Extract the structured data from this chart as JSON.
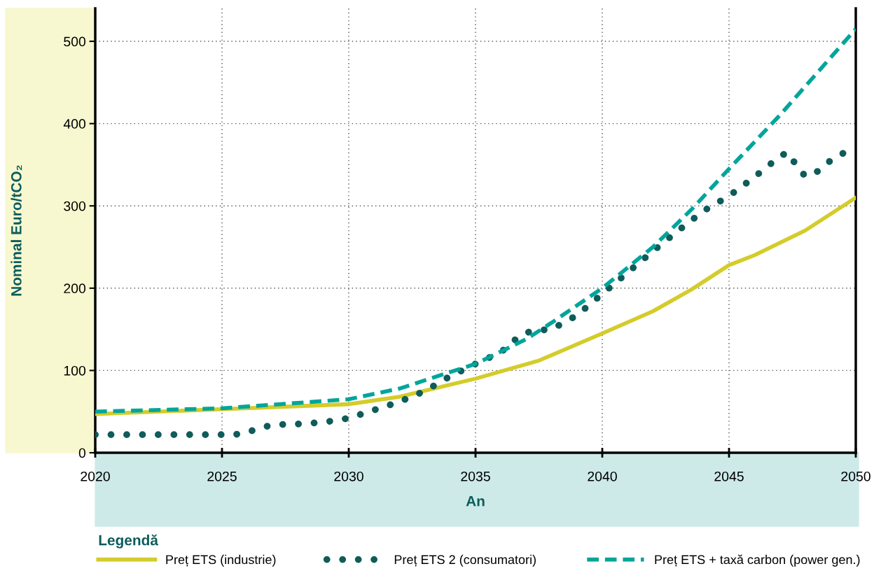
{
  "chart_data": {
    "type": "line",
    "xlabel": "An",
    "ylabel": "Nominal Euro/tCO₂",
    "legend_title": "Legendă",
    "legend": "bottom",
    "grid": true,
    "xlim": [
      2020,
      2050
    ],
    "xticks": [
      2020,
      2025,
      2030,
      2035,
      2040,
      2045,
      2050
    ],
    "ylim": [
      0,
      540
    ],
    "yticks": [
      0,
      100,
      200,
      300,
      400,
      500
    ],
    "series": [
      {
        "name": "Preț ETS (industrie)",
        "color": "#d4cc2a",
        "line_style": "solid",
        "x": [
          2020,
          2025,
          2030,
          2032,
          2035,
          2037.5,
          2040,
          2042,
          2043.5,
          2044.5,
          2045,
          2046,
          2048,
          2050
        ],
        "values": [
          47,
          53,
          59,
          68,
          90,
          112,
          145,
          172,
          198,
          218,
          228,
          240,
          270,
          310
        ]
      },
      {
        "name": "Preț ETS 2 (consumatori)",
        "color": "#0f5c5a",
        "line_style": "dotted",
        "x": [
          2020,
          2025,
          2025.5,
          2026,
          2026.5,
          2027,
          2028,
          2029,
          2030,
          2031,
          2032,
          2033,
          2034,
          2035,
          2035.5,
          2036,
          2036.5,
          2037,
          2037.5,
          2038,
          2039,
          2040,
          2041,
          2042,
          2043,
          2044,
          2045,
          2046,
          2047,
          2047.3,
          2047.6,
          2048,
          2048.5,
          2049,
          2050
        ],
        "values": [
          22,
          22,
          22,
          25,
          30,
          34,
          35,
          37,
          42,
          52,
          62,
          75,
          93,
          108,
          115,
          122,
          136,
          146,
          149,
          150,
          167,
          193,
          219,
          245,
          270,
          294,
          312,
          335,
          360,
          365,
          352,
          336,
          342,
          355,
          373
        ]
      },
      {
        "name": "Preț ETS + taxă carbon (power gen.)",
        "color": "#00a59b",
        "line_style": "dashed",
        "x": [
          2020,
          2025,
          2030,
          2032,
          2035,
          2037,
          2038,
          2040,
          2042,
          2043.5,
          2045,
          2047,
          2050
        ],
        "values": [
          50,
          54,
          65,
          78,
          108,
          138,
          158,
          200,
          250,
          295,
          345,
          410,
          515
        ]
      }
    ]
  }
}
